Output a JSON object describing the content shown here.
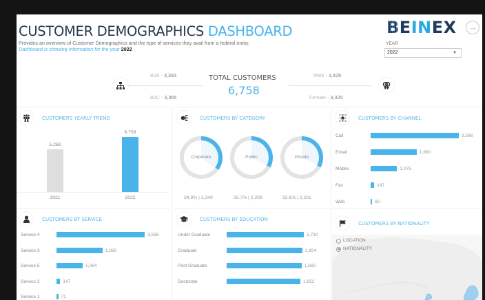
{
  "header": {
    "title_main": "CUSTOMER DEMOGRAPHICS",
    "title_accent": "DASHBOARD",
    "subtitle": "Provides an overview of Customer Demographics and the type of services they avail from a federal entity.",
    "year_note": "Dashboard is showing information for the year",
    "year_note_value": "2022",
    "logo": {
      "b": "B",
      "e": "E",
      "in": "IN",
      "ex": "EX"
    },
    "nav_icon": "arrow-right-circle-icon",
    "year_filter": {
      "label": "YEAR",
      "selected": "2022"
    }
  },
  "kpi": {
    "title": "TOTAL CUSTOMERS",
    "value": "6,758",
    "b2b_label": "B2B - ",
    "b2b_value": "3,393",
    "b2c_label": "B2C - ",
    "b2c_value": "3,365",
    "male_label": "Male - ",
    "male_value": "3,429",
    "female_label": "Female - ",
    "female_value": "3,329",
    "left_icon": "hierarchy-icon",
    "right_icon": "gender-icon"
  },
  "colors": {
    "accent": "#4ab4ea",
    "bar_grey": "#dedede",
    "title_dark": "#2b3a4e"
  },
  "cards": {
    "yearly_trend": {
      "title": "CUSTOMERS YEARLY TREND",
      "icon": "group-icon"
    },
    "category": {
      "title": "CUSTOMERS BY CATEGORY",
      "icon": "category-icon"
    },
    "channel": {
      "title": "CUSTOMERS BY CHANNEL",
      "icon": "channel-icon"
    },
    "service": {
      "title": "CUSTOMERS BY SERVICE",
      "icon": "person-icon"
    },
    "education": {
      "title": "CUSTOMERS BY EDUCATION",
      "icon": "graduation-cap-icon"
    },
    "nationality": {
      "title": "CUSTOMERS BY NATIONALITY",
      "icon": "flag-icon",
      "options": [
        "LOCATION",
        "NATIONALITY"
      ],
      "selected": "NATIONALITY"
    }
  },
  "chart_data": [
    {
      "id": "yearly_trend",
      "type": "bar",
      "title": "CUSTOMERS YEARLY TREND",
      "categories": [
        "2021",
        "2022"
      ],
      "values": [
        5268,
        6758
      ],
      "labels": [
        "5,268",
        "6,758"
      ],
      "ylim": [
        0,
        6758
      ]
    },
    {
      "id": "category",
      "type": "pie",
      "title": "CUSTOMERS BY CATEGORY",
      "categories": [
        "Corporate",
        "Public",
        "Private"
      ],
      "percents": [
        34.8,
        32.7,
        32.6
      ],
      "values": [
        2349,
        2208,
        2201
      ],
      "labels": [
        "34.8% | 2,349",
        "32.7% | 2,208",
        "32.6% | 2,201"
      ]
    },
    {
      "id": "channel",
      "type": "bar",
      "orientation": "horizontal",
      "title": "CUSTOMERS BY CHANNEL",
      "categories": [
        "Call",
        "Email",
        "Mobile",
        "Fax",
        "Web"
      ],
      "values": [
        3596,
        1880,
        1075,
        147,
        60
      ],
      "labels": [
        "3,596",
        "1,880",
        "1,075",
        "147",
        "60"
      ]
    },
    {
      "id": "service",
      "type": "bar",
      "orientation": "horizontal",
      "title": "CUSTOMERS BY SERVICE",
      "categories": [
        "Service 4",
        "Service 3",
        "Service 5",
        "Service 2",
        "Service 1"
      ],
      "values": [
        3596,
        1880,
        1064,
        147,
        71
      ],
      "labels": [
        "3,596",
        "1,880",
        "1,064",
        "147",
        "71"
      ]
    },
    {
      "id": "education",
      "type": "bar",
      "orientation": "horizontal",
      "title": "CUSTOMERS BY EDUCATION",
      "categories": [
        "Under Graduate",
        "Graduate",
        "Post Graduate",
        "Doctorate"
      ],
      "values": [
        1730,
        1694,
        1682,
        1652
      ],
      "labels": [
        "1,730",
        "1,694",
        "1,682",
        "1,652"
      ]
    }
  ]
}
